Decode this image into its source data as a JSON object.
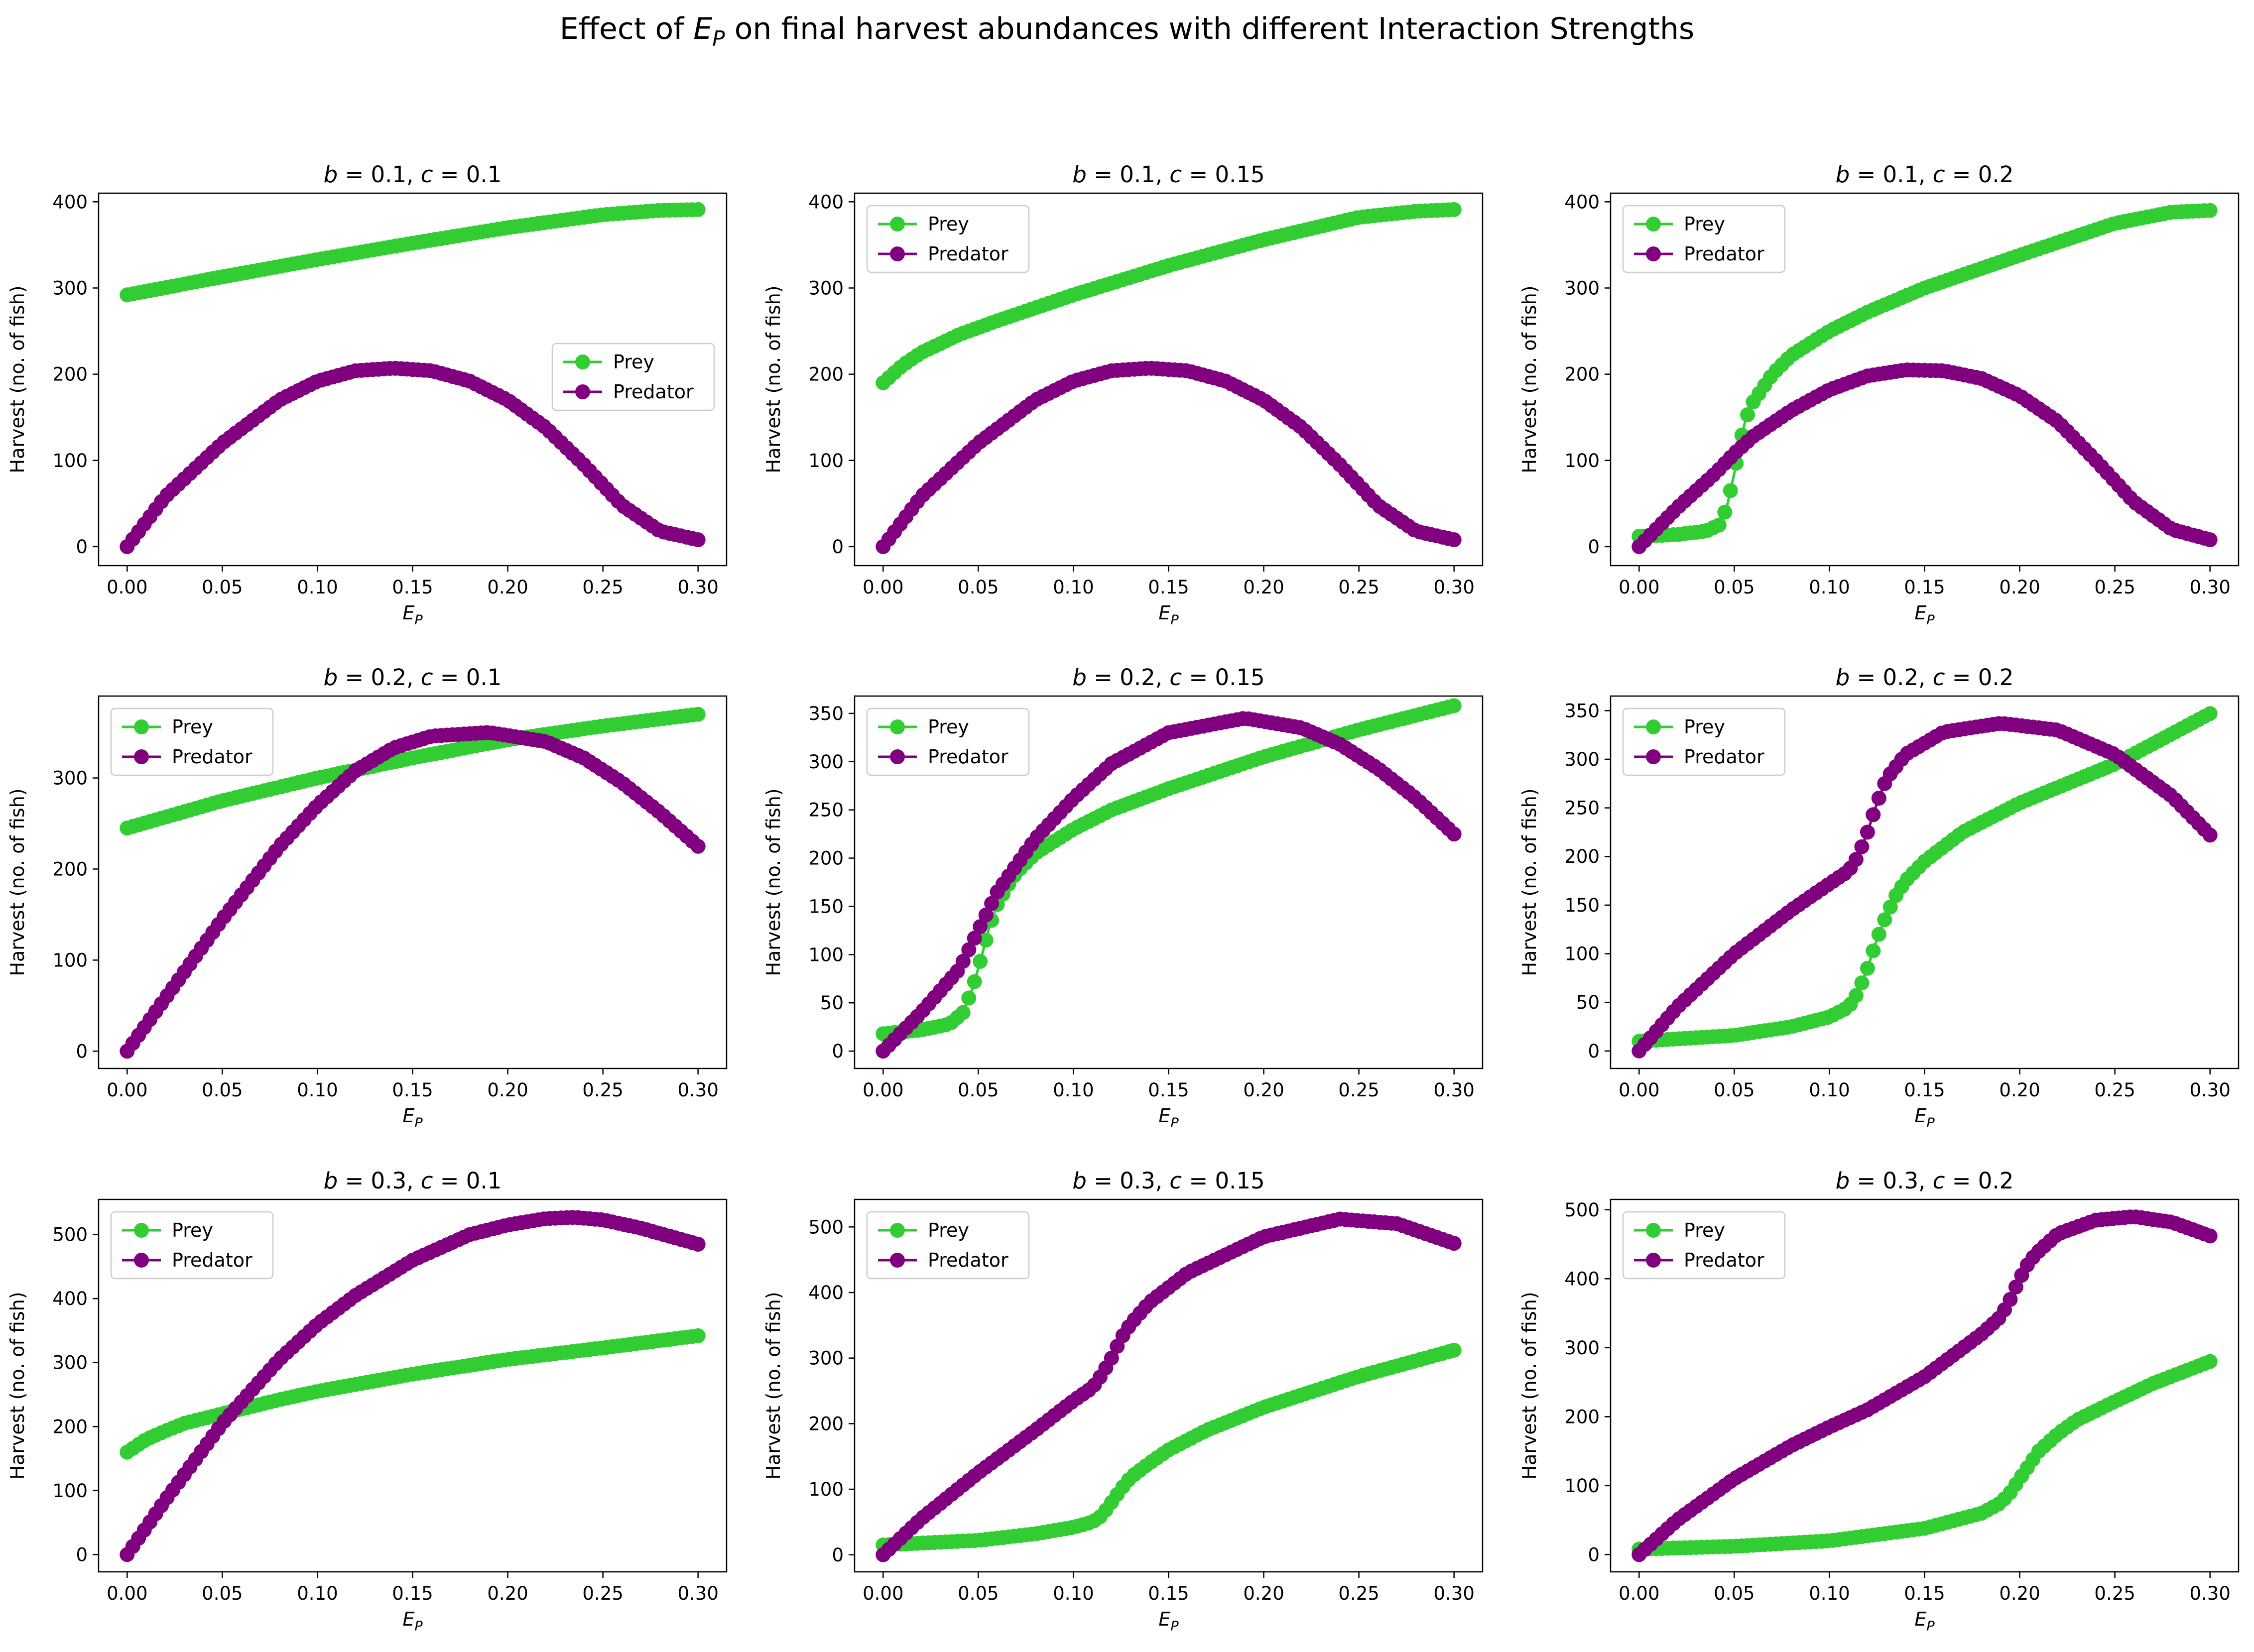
{
  "figure": {
    "title_prefix": "Effect of ",
    "title_symbol": "E",
    "title_subscript": "P",
    "title_suffix": " on final harvest abundances with different Interaction Strengths"
  },
  "colors": {
    "prey": "#32cd32",
    "predator": "#800080"
  },
  "legend_labels": [
    "Prey",
    "Predator"
  ],
  "chart_data": [
    {
      "type": "line",
      "b": "0.1",
      "c": "0.1",
      "title_b": "b",
      "title_c": "c",
      "title_eq_b": " = 0.1, ",
      "title_eq_c": " = 0.1",
      "xlabel_symbol": "E",
      "xlabel_subscript": "P",
      "ylabel": "Harvest (no. of fish)",
      "xlim": [
        -0.015,
        0.315
      ],
      "ylim": [
        -22,
        410
      ],
      "xticks": [
        "0.00",
        "0.05",
        "0.10",
        "0.15",
        "0.20",
        "0.25",
        "0.30"
      ],
      "yticks": [
        "0",
        "100",
        "200",
        "300",
        "400"
      ],
      "legend_position": "center-right",
      "series": [
        {
          "name": "Prey",
          "color": "#32cd32",
          "x": [
            0,
            0.05,
            0.1,
            0.15,
            0.2,
            0.25,
            0.28,
            0.3
          ],
          "y": [
            292,
            313,
            333,
            352,
            370,
            385,
            390,
            391
          ]
        },
        {
          "name": "Predator",
          "color": "#800080",
          "x": [
            0,
            0.02,
            0.05,
            0.08,
            0.1,
            0.12,
            0.14,
            0.16,
            0.18,
            0.2,
            0.22,
            0.24,
            0.26,
            0.28,
            0.3
          ],
          "y": [
            0,
            58,
            120,
            170,
            192,
            204,
            207,
            204,
            192,
            170,
            138,
            95,
            48,
            18,
            8
          ]
        }
      ]
    },
    {
      "type": "line",
      "b": "0.1",
      "c": "0.15",
      "title_b": "b",
      "title_c": "c",
      "title_eq_b": " = 0.1, ",
      "title_eq_c": " = 0.15",
      "xlabel_symbol": "E",
      "xlabel_subscript": "P",
      "ylabel": "Harvest (no. of fish)",
      "xlim": [
        -0.015,
        0.315
      ],
      "ylim": [
        -22,
        410
      ],
      "xticks": [
        "0.00",
        "0.05",
        "0.10",
        "0.15",
        "0.20",
        "0.25",
        "0.30"
      ],
      "yticks": [
        "0",
        "100",
        "200",
        "300",
        "400"
      ],
      "legend_position": "top-left",
      "series": [
        {
          "name": "Prey",
          "color": "#32cd32",
          "x": [
            0,
            0.01,
            0.02,
            0.04,
            0.06,
            0.1,
            0.15,
            0.2,
            0.25,
            0.28,
            0.3
          ],
          "y": [
            190,
            210,
            225,
            246,
            262,
            292,
            326,
            356,
            382,
            389,
            391
          ]
        },
        {
          "name": "Predator",
          "color": "#800080",
          "x": [
            0,
            0.02,
            0.05,
            0.08,
            0.1,
            0.12,
            0.14,
            0.16,
            0.18,
            0.2,
            0.22,
            0.24,
            0.26,
            0.28,
            0.3
          ],
          "y": [
            0,
            58,
            120,
            170,
            192,
            204,
            207,
            204,
            192,
            170,
            138,
            95,
            48,
            18,
            8
          ]
        }
      ]
    },
    {
      "type": "line",
      "b": "0.1",
      "c": "0.2",
      "title_b": "b",
      "title_c": "c",
      "title_eq_b": " = 0.1, ",
      "title_eq_c": " = 0.2",
      "xlabel_symbol": "E",
      "xlabel_subscript": "P",
      "ylabel": "Harvest (no. of fish)",
      "xlim": [
        -0.015,
        0.315
      ],
      "ylim": [
        -22,
        410
      ],
      "xticks": [
        "0.00",
        "0.05",
        "0.10",
        "0.15",
        "0.20",
        "0.25",
        "0.30"
      ],
      "yticks": [
        "0",
        "100",
        "200",
        "300",
        "400"
      ],
      "legend_position": "top-left",
      "series": [
        {
          "name": "Prey",
          "color": "#32cd32",
          "x": [
            0,
            0.02,
            0.035,
            0.042,
            0.046,
            0.05,
            0.053,
            0.056,
            0.06,
            0.07,
            0.08,
            0.1,
            0.12,
            0.15,
            0.2,
            0.25,
            0.28,
            0.3
          ],
          "y": [
            12,
            14,
            18,
            25,
            45,
            85,
            120,
            148,
            168,
            200,
            222,
            250,
            272,
            300,
            338,
            375,
            388,
            390
          ]
        },
        {
          "name": "Predator",
          "color": "#800080",
          "x": [
            0,
            0.02,
            0.04,
            0.05,
            0.06,
            0.08,
            0.1,
            0.12,
            0.14,
            0.16,
            0.18,
            0.2,
            0.22,
            0.24,
            0.26,
            0.28,
            0.3
          ],
          "y": [
            0,
            45,
            85,
            108,
            128,
            158,
            182,
            198,
            205,
            204,
            195,
            175,
            145,
            100,
            52,
            20,
            8
          ]
        }
      ]
    },
    {
      "type": "line",
      "b": "0.2",
      "c": "0.1",
      "title_b": "b",
      "title_c": "c",
      "title_eq_b": " = 0.2, ",
      "title_eq_c": " = 0.1",
      "xlabel_symbol": "E",
      "xlabel_subscript": "P",
      "ylabel": "Harvest (no. of fish)",
      "xlim": [
        -0.015,
        0.315
      ],
      "ylim": [
        -19,
        390
      ],
      "xticks": [
        "0.00",
        "0.05",
        "0.10",
        "0.15",
        "0.20",
        "0.25",
        "0.30"
      ],
      "yticks": [
        "0",
        "100",
        "200",
        "300"
      ],
      "legend_position": "top-left",
      "series": [
        {
          "name": "Prey",
          "color": "#32cd32",
          "x": [
            0,
            0.05,
            0.1,
            0.15,
            0.2,
            0.25,
            0.3
          ],
          "y": [
            245,
            275,
            300,
            322,
            342,
            357,
            370
          ]
        },
        {
          "name": "Predator",
          "color": "#800080",
          "x": [
            0,
            0.02,
            0.05,
            0.08,
            0.1,
            0.12,
            0.14,
            0.16,
            0.19,
            0.22,
            0.24,
            0.26,
            0.28,
            0.3
          ],
          "y": [
            0,
            58,
            145,
            225,
            270,
            308,
            333,
            346,
            350,
            340,
            322,
            295,
            262,
            225
          ]
        }
      ]
    },
    {
      "type": "line",
      "b": "0.2",
      "c": "0.15",
      "title_b": "b",
      "title_c": "c",
      "title_eq_b": " = 0.2, ",
      "title_eq_c": " = 0.15",
      "xlabel_symbol": "E",
      "xlabel_subscript": "P",
      "ylabel": "Harvest (no. of fish)",
      "xlim": [
        -0.015,
        0.315
      ],
      "ylim": [
        -18,
        368
      ],
      "xticks": [
        "0.00",
        "0.05",
        "0.10",
        "0.15",
        "0.20",
        "0.25",
        "0.30"
      ],
      "yticks": [
        "0",
        "50",
        "100",
        "150",
        "200",
        "250",
        "300",
        "350"
      ],
      "legend_position": "top-left",
      "series": [
        {
          "name": "Prey",
          "color": "#32cd32",
          "x": [
            0,
            0.02,
            0.035,
            0.042,
            0.047,
            0.052,
            0.056,
            0.06,
            0.065,
            0.07,
            0.08,
            0.1,
            0.12,
            0.15,
            0.2,
            0.25,
            0.3
          ],
          "y": [
            18,
            22,
            28,
            40,
            65,
            100,
            130,
            152,
            170,
            185,
            205,
            230,
            250,
            272,
            305,
            333,
            358
          ]
        },
        {
          "name": "Predator",
          "color": "#800080",
          "x": [
            0,
            0.02,
            0.04,
            0.05,
            0.06,
            0.08,
            0.1,
            0.12,
            0.15,
            0.19,
            0.22,
            0.24,
            0.26,
            0.28,
            0.3
          ],
          "y": [
            0,
            40,
            85,
            125,
            165,
            220,
            262,
            298,
            330,
            345,
            335,
            318,
            293,
            262,
            225
          ]
        }
      ]
    },
    {
      "type": "line",
      "b": "0.2",
      "c": "0.2",
      "title_b": "b",
      "title_c": "c",
      "title_eq_b": " = 0.2, ",
      "title_eq_c": " = 0.2",
      "xlabel_symbol": "E",
      "xlabel_subscript": "P",
      "ylabel": "Harvest (no. of fish)",
      "xlim": [
        -0.015,
        0.315
      ],
      "ylim": [
        -18,
        365
      ],
      "xticks": [
        "0.00",
        "0.05",
        "0.10",
        "0.15",
        "0.20",
        "0.25",
        "0.30"
      ],
      "yticks": [
        "0",
        "50",
        "100",
        "150",
        "200",
        "250",
        "300",
        "350"
      ],
      "legend_position": "top-left",
      "series": [
        {
          "name": "Prey",
          "color": "#32cd32",
          "x": [
            0,
            0.05,
            0.08,
            0.1,
            0.11,
            0.115,
            0.12,
            0.125,
            0.13,
            0.135,
            0.14,
            0.15,
            0.17,
            0.2,
            0.25,
            0.3
          ],
          "y": [
            10,
            16,
            25,
            35,
            45,
            60,
            85,
            115,
            140,
            160,
            175,
            195,
            225,
            255,
            295,
            347
          ]
        },
        {
          "name": "Predator",
          "color": "#800080",
          "x": [
            0,
            0.02,
            0.05,
            0.08,
            0.1,
            0.11,
            0.115,
            0.12,
            0.125,
            0.13,
            0.14,
            0.16,
            0.19,
            0.22,
            0.25,
            0.28,
            0.3
          ],
          "y": [
            0,
            45,
            100,
            145,
            172,
            185,
            200,
            225,
            255,
            280,
            305,
            328,
            337,
            330,
            305,
            262,
            222
          ]
        }
      ]
    },
    {
      "type": "line",
      "b": "0.3",
      "c": "0.1",
      "title_b": "b",
      "title_c": "c",
      "title_eq_b": " = 0.3, ",
      "title_eq_c": " = 0.1",
      "xlabel_symbol": "E",
      "xlabel_subscript": "P",
      "ylabel": "Harvest (no. of fish)",
      "xlim": [
        -0.015,
        0.315
      ],
      "ylim": [
        -27,
        555
      ],
      "xticks": [
        "0.00",
        "0.05",
        "0.10",
        "0.15",
        "0.20",
        "0.25",
        "0.30"
      ],
      "yticks": [
        "0",
        "100",
        "200",
        "300",
        "400",
        "500"
      ],
      "legend_position": "top-left",
      "series": [
        {
          "name": "Prey",
          "color": "#32cd32",
          "x": [
            0,
            0.01,
            0.02,
            0.03,
            0.05,
            0.08,
            0.1,
            0.15,
            0.2,
            0.25,
            0.3
          ],
          "y": [
            160,
            180,
            193,
            205,
            220,
            242,
            255,
            282,
            305,
            323,
            342
          ]
        },
        {
          "name": "Predator",
          "color": "#800080",
          "x": [
            0,
            0.02,
            0.05,
            0.08,
            0.1,
            0.12,
            0.15,
            0.18,
            0.2,
            0.22,
            0.235,
            0.25,
            0.27,
            0.3
          ],
          "y": [
            0,
            85,
            205,
            305,
            360,
            405,
            460,
            500,
            515,
            525,
            527,
            523,
            510,
            485
          ]
        }
      ]
    },
    {
      "type": "line",
      "b": "0.3",
      "c": "0.15",
      "title_b": "b",
      "title_c": "c",
      "title_eq_b": " = 0.3, ",
      "title_eq_c": " = 0.15",
      "xlabel_symbol": "E",
      "xlabel_subscript": "P",
      "ylabel": "Harvest (no. of fish)",
      "xlim": [
        -0.015,
        0.315
      ],
      "ylim": [
        -26,
        542
      ],
      "xticks": [
        "0.00",
        "0.05",
        "0.10",
        "0.15",
        "0.20",
        "0.25",
        "0.30"
      ],
      "yticks": [
        "0",
        "100",
        "200",
        "300",
        "400",
        "500"
      ],
      "legend_position": "top-left",
      "series": [
        {
          "name": "Prey",
          "color": "#32cd32",
          "x": [
            0,
            0.05,
            0.08,
            0.1,
            0.11,
            0.115,
            0.12,
            0.125,
            0.13,
            0.14,
            0.15,
            0.17,
            0.2,
            0.25,
            0.3
          ],
          "y": [
            15,
            22,
            32,
            42,
            50,
            60,
            80,
            100,
            118,
            140,
            160,
            190,
            225,
            272,
            312
          ]
        },
        {
          "name": "Predator",
          "color": "#800080",
          "x": [
            0,
            0.02,
            0.05,
            0.08,
            0.1,
            0.11,
            0.115,
            0.12,
            0.125,
            0.13,
            0.14,
            0.16,
            0.2,
            0.24,
            0.27,
            0.3
          ],
          "y": [
            0,
            55,
            125,
            190,
            235,
            255,
            275,
            300,
            330,
            352,
            385,
            430,
            485,
            512,
            505,
            475
          ]
        }
      ]
    },
    {
      "type": "line",
      "b": "0.3",
      "c": "0.2",
      "title_b": "b",
      "title_c": "c",
      "title_eq_b": " = 0.3, ",
      "title_eq_c": " = 0.2",
      "xlabel_symbol": "E",
      "xlabel_subscript": "P",
      "ylabel": "Harvest (no. of fish)",
      "xlim": [
        -0.015,
        0.315
      ],
      "ylim": [
        -25,
        515
      ],
      "xticks": [
        "0.00",
        "0.05",
        "0.10",
        "0.15",
        "0.20",
        "0.25",
        "0.30"
      ],
      "yticks": [
        "0",
        "100",
        "200",
        "300",
        "400",
        "500"
      ],
      "legend_position": "top-left",
      "series": [
        {
          "name": "Prey",
          "color": "#32cd32",
          "x": [
            0,
            0.05,
            0.1,
            0.15,
            0.18,
            0.19,
            0.195,
            0.2,
            0.205,
            0.21,
            0.22,
            0.23,
            0.25,
            0.27,
            0.3
          ],
          "y": [
            8,
            12,
            20,
            38,
            60,
            75,
            90,
            110,
            130,
            150,
            175,
            195,
            222,
            248,
            280
          ]
        },
        {
          "name": "Predator",
          "color": "#800080",
          "x": [
            0,
            0.02,
            0.05,
            0.08,
            0.1,
            0.12,
            0.15,
            0.18,
            0.19,
            0.195,
            0.2,
            0.205,
            0.21,
            0.22,
            0.24,
            0.26,
            0.28,
            0.3
          ],
          "y": [
            0,
            50,
            110,
            158,
            185,
            210,
            258,
            320,
            345,
            370,
            400,
            425,
            440,
            465,
            485,
            490,
            482,
            462
          ]
        }
      ]
    }
  ]
}
